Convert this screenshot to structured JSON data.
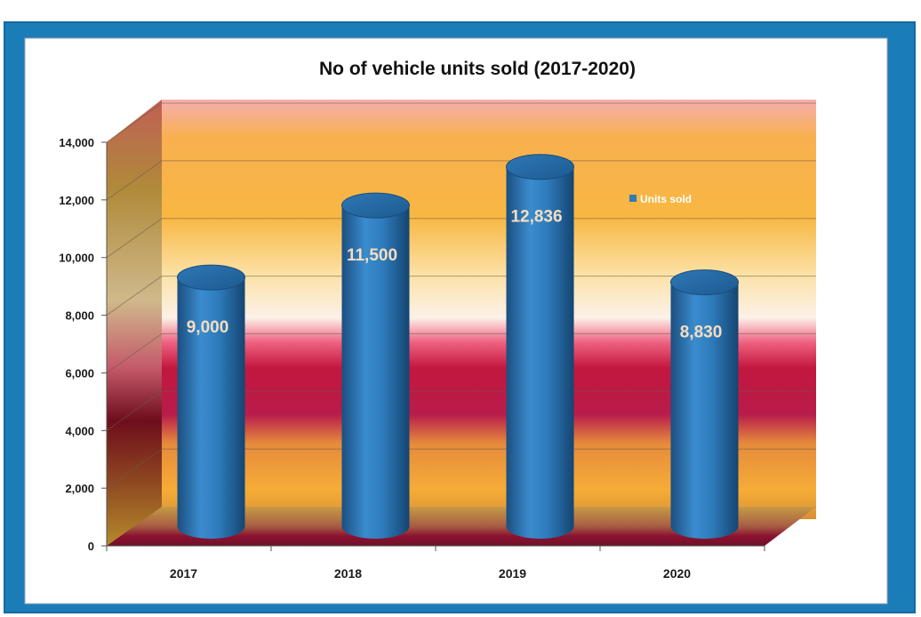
{
  "chart_data": {
    "type": "bar",
    "title": "No of vehicle units sold (2017-2020)",
    "categories": [
      "2017",
      "2018",
      "2019",
      "2020"
    ],
    "series": [
      {
        "name": "Units sold",
        "values": [
          9000,
          11500,
          12836,
          8830
        ],
        "color": "#2f7bb8"
      }
    ],
    "data_labels": [
      "9,000",
      "11,500",
      "12,836",
      "8,830"
    ],
    "ylim": [
      0,
      14000
    ],
    "y_ticks": [
      0,
      2000,
      4000,
      6000,
      8000,
      10000,
      12000,
      14000
    ],
    "y_tick_labels": [
      "0",
      "2,000",
      "4,000",
      "6,000",
      "8,000",
      "10,000",
      "12,000",
      "14,000"
    ],
    "xlabel": "",
    "ylabel": "",
    "grid": true,
    "legend_position": "top-right",
    "style": "3d-cylinder"
  },
  "colors": {
    "frame": "#1b7db8",
    "bar": "#2f7bb8",
    "data_label": "#f7ddc0"
  }
}
